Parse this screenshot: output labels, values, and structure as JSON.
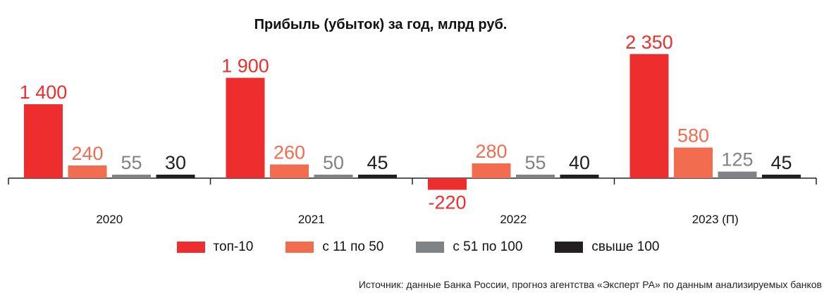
{
  "chart_data": {
    "type": "bar",
    "title": "Прибыль (убыток) за год, млрд руб.",
    "categories": [
      "2020",
      "2021",
      "2022",
      "2023 (П)"
    ],
    "series": [
      {
        "name": "топ-10",
        "color": "#ee2e2e",
        "values": [
          1400,
          1900,
          -220,
          2350
        ],
        "labels": [
          "1 400",
          "1 900",
          "-220",
          "2 350"
        ]
      },
      {
        "name": "с 11 по 50",
        "color": "#f26c50",
        "values": [
          240,
          260,
          280,
          580
        ],
        "labels": [
          "240",
          "260",
          "280",
          "580"
        ]
      },
      {
        "name": "с 51 по 100",
        "color": "#808285",
        "values": [
          55,
          50,
          55,
          125
        ],
        "labels": [
          "55",
          "50",
          "55",
          "125"
        ]
      },
      {
        "name": "свыше 100",
        "color": "#231f20",
        "values": [
          30,
          45,
          40,
          45
        ],
        "labels": [
          "30",
          "45",
          "40",
          "45"
        ]
      }
    ],
    "legend_position": "bottom",
    "grid": false,
    "ylim": [
      -220,
      2350
    ]
  },
  "source": "Источник: данные Банка России, прогноз агентства «Эксперт РА» по данным анализируемых банков"
}
